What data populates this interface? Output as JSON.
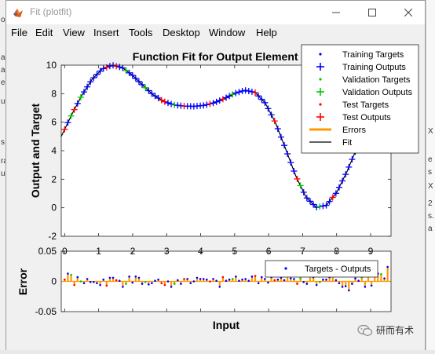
{
  "window": {
    "title": "Fit (plotfit)"
  },
  "menu": [
    "File",
    "Edit",
    "View",
    "Insert",
    "Tools",
    "Desktop",
    "Window",
    "Help"
  ],
  "background": {
    "left_fragments": [
      "os",
      "a",
      "a",
      "ea",
      "u",
      "s",
      "ra",
      "u"
    ],
    "right_fragments": [
      "X",
      "e",
      "s",
      "X",
      "2",
      "s.",
      "a"
    ]
  },
  "watermark": {
    "text": "研而有术"
  },
  "colors": {
    "training": "#0000ff",
    "validation": "#00c800",
    "test": "#ff0000",
    "errors": "#ff9900",
    "fit": "#000000"
  },
  "chart_data": [
    {
      "type": "line",
      "title": "Function Fit for Output Element 1",
      "xlabel": "",
      "ylabel": "Output and Target",
      "xlim": [
        -0.1,
        9.6
      ],
      "ylim": [
        -2,
        10
      ],
      "yticks": [
        -2,
        0,
        2,
        4,
        6,
        8,
        10
      ],
      "legend": {
        "position": "top-right",
        "entries": [
          "Training Targets",
          "Training Outputs",
          "Validation Targets",
          "Validation Outputs",
          "Test Targets",
          "Test Outputs",
          "Errors",
          "Fit"
        ]
      },
      "fit_curve": {
        "x": [
          -0.1,
          0.2,
          0.5,
          0.8,
          1.1,
          1.4,
          1.7,
          2.0,
          2.3,
          2.6,
          2.9,
          3.2,
          3.5,
          3.8,
          4.1,
          4.4,
          4.7,
          5.0,
          5.3,
          5.6,
          5.9,
          6.2,
          6.5,
          6.8,
          7.1,
          7.4,
          7.7,
          8.0,
          8.3,
          8.6,
          8.9,
          9.2,
          9.5
        ],
        "y": [
          5.0,
          6.49,
          7.86,
          8.98,
          9.72,
          10.0,
          9.82,
          9.28,
          8.58,
          7.93,
          7.47,
          7.22,
          7.13,
          7.11,
          7.18,
          7.36,
          7.66,
          8.02,
          8.24,
          8.09,
          7.34,
          5.97,
          4.13,
          2.22,
          0.74,
          0.03,
          0.17,
          1.07,
          2.51,
          4.22,
          5.96,
          7.53,
          8.76
        ]
      },
      "sample_groups": {
        "test": [
          0.0,
          0.3,
          1.2,
          1.5,
          2.9,
          3.5,
          4.3,
          4.7,
          5.6,
          6.2,
          6.8,
          7.9
        ],
        "validation": [
          0.2,
          0.5,
          1.8,
          2.4,
          3.2,
          4.9,
          6.9,
          7.5,
          8.7,
          9.3
        ]
      }
    },
    {
      "type": "bar",
      "xlabel": "Input",
      "ylabel": "Error",
      "ylim": [
        -0.05,
        0.05
      ],
      "yticks": [
        -0.05,
        0,
        0.05
      ],
      "ytick_labels": [
        "-0.05",
        "0",
        "0.05"
      ],
      "xlim": [
        -0.1,
        9.6
      ],
      "xticks": [
        0,
        1,
        2,
        3,
        4,
        5,
        6,
        7,
        8,
        9
      ],
      "legend": {
        "position": "top-right",
        "entries": [
          "Targets - Outputs"
        ]
      },
      "error_values": [
        0.003,
        0.013,
        0.011,
        -0.006,
        0.007,
        0.0,
        -0.003,
        0.004,
        -0.001,
        -0.001,
        -0.003,
        -0.006,
        0.003,
        -0.007,
        0.006,
        0.006,
        0.002,
        0.001,
        -0.009,
        -0.004,
        0.008,
        -0.002,
        0.008,
        0.006,
        -0.004,
        -0.001,
        -0.005,
        -0.003,
        0.001,
        0.003,
        -0.003,
        -0.006,
        0.0,
        -0.009,
        -0.004,
        0.002,
        -0.004,
        0.004,
        0.004,
        -0.003,
        0.0,
        0.006,
        0.004,
        0.004,
        0.003,
        0.0,
        0.004,
        0.001,
        -0.009,
        0.007,
        0.001,
        0.003,
        0.004,
        0.008,
        0.001,
        0.003,
        0.004,
        0.001,
        0.008,
        0.009,
        -0.003,
        0.007,
        0.004,
        -0.002,
        0.007,
        0.002,
        0.003,
        0.006,
        0.002,
        0.01,
        0.005,
        0.004,
        -0.004,
        0.005,
        -0.001,
        -0.004,
        0.012,
        0.007,
        -0.006,
        -0.001,
        0.003,
        0.003,
        0.007,
        0.009,
        0.002,
        -0.003,
        -0.009,
        -0.008,
        -0.015,
        -0.004,
        0.005,
        0.001,
        0.007,
        -0.009,
        0.01,
        -0.007,
        0.032,
        0.013,
        0.012,
        0.005,
        0.024
      ]
    }
  ]
}
